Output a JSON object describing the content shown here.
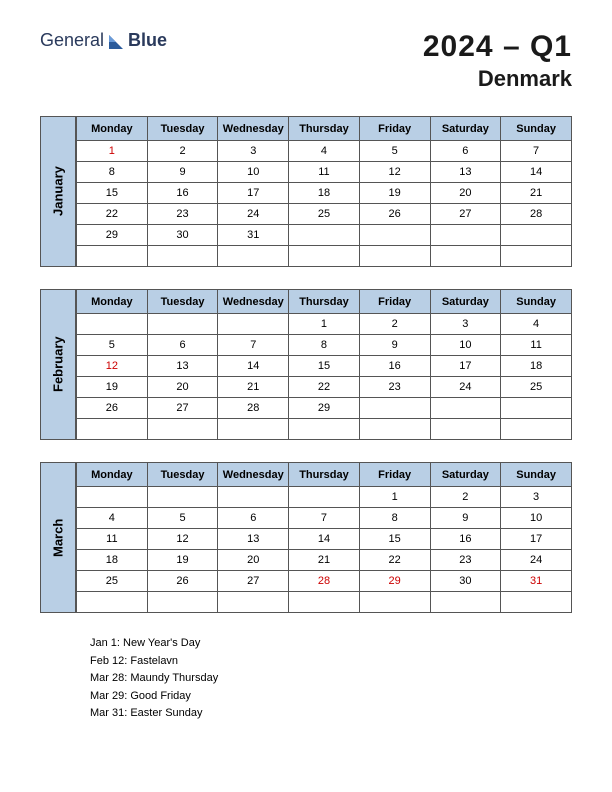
{
  "logo": {
    "text1": "General",
    "text2": "Blue"
  },
  "title": {
    "year_quarter": "2024 – Q1",
    "country": "Denmark"
  },
  "colors": {
    "header_bg": "#b9cfe5",
    "border": "#555555",
    "holiday_text": "#cc0000",
    "logo_color": "#2a3a5c",
    "background": "#ffffff"
  },
  "day_headers": [
    "Monday",
    "Tuesday",
    "Wednesday",
    "Thursday",
    "Friday",
    "Saturday",
    "Sunday"
  ],
  "months": [
    {
      "name": "January",
      "weeks": [
        [
          {
            "d": "1",
            "h": true
          },
          {
            "d": "2"
          },
          {
            "d": "3"
          },
          {
            "d": "4"
          },
          {
            "d": "5"
          },
          {
            "d": "6"
          },
          {
            "d": "7"
          }
        ],
        [
          {
            "d": "8"
          },
          {
            "d": "9"
          },
          {
            "d": "10"
          },
          {
            "d": "11"
          },
          {
            "d": "12"
          },
          {
            "d": "13"
          },
          {
            "d": "14"
          }
        ],
        [
          {
            "d": "15"
          },
          {
            "d": "16"
          },
          {
            "d": "17"
          },
          {
            "d": "18"
          },
          {
            "d": "19"
          },
          {
            "d": "20"
          },
          {
            "d": "21"
          }
        ],
        [
          {
            "d": "22"
          },
          {
            "d": "23"
          },
          {
            "d": "24"
          },
          {
            "d": "25"
          },
          {
            "d": "26"
          },
          {
            "d": "27"
          },
          {
            "d": "28"
          }
        ],
        [
          {
            "d": "29"
          },
          {
            "d": "30"
          },
          {
            "d": "31"
          },
          {
            "d": ""
          },
          {
            "d": ""
          },
          {
            "d": ""
          },
          {
            "d": ""
          }
        ],
        [
          {
            "d": ""
          },
          {
            "d": ""
          },
          {
            "d": ""
          },
          {
            "d": ""
          },
          {
            "d": ""
          },
          {
            "d": ""
          },
          {
            "d": ""
          }
        ]
      ]
    },
    {
      "name": "February",
      "weeks": [
        [
          {
            "d": ""
          },
          {
            "d": ""
          },
          {
            "d": ""
          },
          {
            "d": "1"
          },
          {
            "d": "2"
          },
          {
            "d": "3"
          },
          {
            "d": "4"
          }
        ],
        [
          {
            "d": "5"
          },
          {
            "d": "6"
          },
          {
            "d": "7"
          },
          {
            "d": "8"
          },
          {
            "d": "9"
          },
          {
            "d": "10"
          },
          {
            "d": "11"
          }
        ],
        [
          {
            "d": "12",
            "h": true
          },
          {
            "d": "13"
          },
          {
            "d": "14"
          },
          {
            "d": "15"
          },
          {
            "d": "16"
          },
          {
            "d": "17"
          },
          {
            "d": "18"
          }
        ],
        [
          {
            "d": "19"
          },
          {
            "d": "20"
          },
          {
            "d": "21"
          },
          {
            "d": "22"
          },
          {
            "d": "23"
          },
          {
            "d": "24"
          },
          {
            "d": "25"
          }
        ],
        [
          {
            "d": "26"
          },
          {
            "d": "27"
          },
          {
            "d": "28"
          },
          {
            "d": "29"
          },
          {
            "d": ""
          },
          {
            "d": ""
          },
          {
            "d": ""
          }
        ],
        [
          {
            "d": ""
          },
          {
            "d": ""
          },
          {
            "d": ""
          },
          {
            "d": ""
          },
          {
            "d": ""
          },
          {
            "d": ""
          },
          {
            "d": ""
          }
        ]
      ]
    },
    {
      "name": "March",
      "weeks": [
        [
          {
            "d": ""
          },
          {
            "d": ""
          },
          {
            "d": ""
          },
          {
            "d": ""
          },
          {
            "d": "1"
          },
          {
            "d": "2"
          },
          {
            "d": "3"
          }
        ],
        [
          {
            "d": "4"
          },
          {
            "d": "5"
          },
          {
            "d": "6"
          },
          {
            "d": "7"
          },
          {
            "d": "8"
          },
          {
            "d": "9"
          },
          {
            "d": "10"
          }
        ],
        [
          {
            "d": "11"
          },
          {
            "d": "12"
          },
          {
            "d": "13"
          },
          {
            "d": "14"
          },
          {
            "d": "15"
          },
          {
            "d": "16"
          },
          {
            "d": "17"
          }
        ],
        [
          {
            "d": "18"
          },
          {
            "d": "19"
          },
          {
            "d": "20"
          },
          {
            "d": "21"
          },
          {
            "d": "22"
          },
          {
            "d": "23"
          },
          {
            "d": "24"
          }
        ],
        [
          {
            "d": "25"
          },
          {
            "d": "26"
          },
          {
            "d": "27"
          },
          {
            "d": "28",
            "h": true
          },
          {
            "d": "29",
            "h": true
          },
          {
            "d": "30"
          },
          {
            "d": "31",
            "h": true
          }
        ],
        [
          {
            "d": ""
          },
          {
            "d": ""
          },
          {
            "d": ""
          },
          {
            "d": ""
          },
          {
            "d": ""
          },
          {
            "d": ""
          },
          {
            "d": ""
          }
        ]
      ]
    }
  ],
  "holidays": [
    "Jan 1: New Year's Day",
    "Feb 12: Fastelavn",
    "Mar 28: Maundy Thursday",
    "Mar 29: Good Friday",
    "Mar 31: Easter Sunday"
  ]
}
